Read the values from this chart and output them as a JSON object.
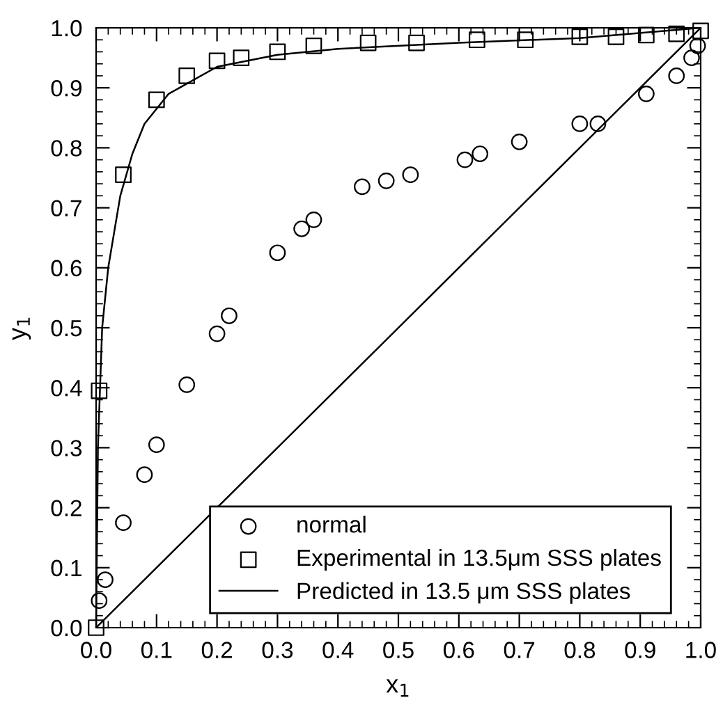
{
  "chart_data": {
    "type": "scatter",
    "xlabel": "x$_{1}$",
    "ylabel": "y$_{1}$",
    "xlim": [
      0,
      1
    ],
    "ylim": [
      0,
      1
    ],
    "xticks": [
      {
        "value": 0,
        "label": "0.0"
      },
      0.1,
      0.2,
      0.3,
      0.4,
      0.5,
      0.6,
      0.7,
      0.8,
      0.9,
      {
        "value": 1,
        "label": "1.0"
      }
    ],
    "yticks": [
      {
        "value": 0,
        "label": "0.0"
      },
      0.1,
      0.2,
      0.3,
      0.4,
      0.5,
      0.6,
      0.7,
      0.8,
      0.9,
      {
        "value": 1,
        "label": "1.0"
      }
    ],
    "grid": false,
    "legend": "bottom right",
    "series": [
      {
        "name": "normal",
        "marker": "circle",
        "color": "#000000",
        "x": [
          0.005,
          0.015,
          0.045,
          0.08,
          0.1,
          0.15,
          0.2,
          0.22,
          0.3,
          0.34,
          0.36,
          0.44,
          0.48,
          0.52,
          0.61,
          0.635,
          0.7,
          0.8,
          0.83,
          0.91,
          0.96,
          0.985,
          0.995
        ],
        "values": [
          0.045,
          0.08,
          0.175,
          0.255,
          0.305,
          0.405,
          0.49,
          0.52,
          0.625,
          0.665,
          0.68,
          0.735,
          0.745,
          0.755,
          0.78,
          0.79,
          0.81,
          0.84,
          0.84,
          0.89,
          0.92,
          0.95,
          0.97
        ]
      },
      {
        "name": "Experimental in 13.5μm SSS plates",
        "marker": "square",
        "color": "#000000",
        "x": [
          0,
          0.005,
          0.045,
          0.1,
          0.15,
          0.2,
          0.24,
          0.3,
          0.36,
          0.45,
          0.53,
          0.63,
          0.71,
          0.8,
          0.86,
          0.91,
          0.96,
          1.0
        ],
        "values": [
          0,
          0.395,
          0.755,
          0.88,
          0.92,
          0.945,
          0.95,
          0.96,
          0.97,
          0.975,
          0.975,
          0.98,
          0.98,
          0.985,
          0.985,
          0.988,
          0.99,
          0.995
        ]
      },
      {
        "name": "Predicted in 13.5 μm SSS plates",
        "type": "line",
        "marker": "none",
        "line_style": "solid",
        "color": "#000000",
        "x": [
          0,
          0.003,
          0.01,
          0.02,
          0.04,
          0.06,
          0.08,
          0.12,
          0.2,
          0.3,
          0.4,
          0.6,
          0.8,
          1.0
        ],
        "values": [
          0,
          0.3,
          0.5,
          0.6,
          0.72,
          0.79,
          0.84,
          0.89,
          0.935,
          0.955,
          0.965,
          0.975,
          0.983,
          1.0
        ]
      },
      {
        "type": "line",
        "marker": "none",
        "line_style": "solid",
        "color": "#000000",
        "x": [
          0,
          1
        ],
        "values": [
          0,
          1
        ]
      }
    ]
  }
}
